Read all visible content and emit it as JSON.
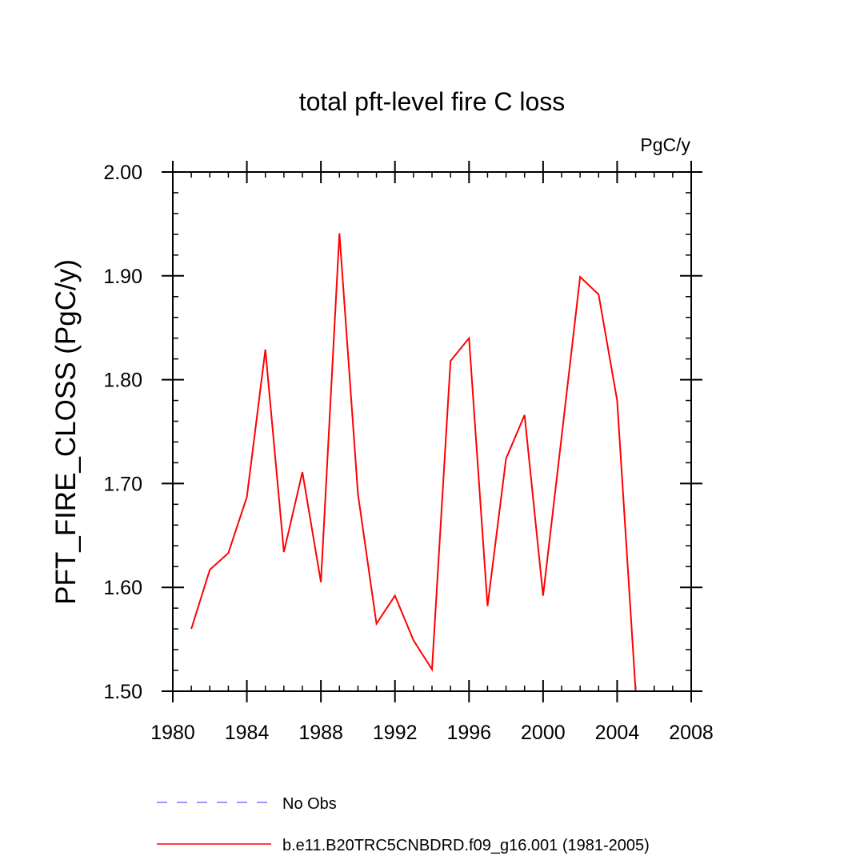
{
  "chart_data": {
    "type": "line",
    "title": "total pft-level fire C loss",
    "units": "PgC/y",
    "xlabel": "",
    "ylabel": "PFT_FIRE_CLOSS  (PgC/y)",
    "xlim": [
      1980,
      2008
    ],
    "ylim": [
      1.5,
      2.0
    ],
    "x_major_ticks": [
      1980,
      1984,
      1988,
      1992,
      1996,
      2000,
      2004,
      2008
    ],
    "y_major_ticks": [
      1.5,
      1.6,
      1.7,
      1.8,
      1.9,
      2.0
    ],
    "y_tick_labels": [
      "1.50",
      "1.60",
      "1.70",
      "1.80",
      "1.90",
      "2.00"
    ],
    "x_minor_step": 1,
    "y_minor_step": 0.02,
    "legend_position": "bottom",
    "series": [
      {
        "name": "No Obs",
        "color": "#5a5aff",
        "style": "dashed",
        "x": [],
        "values": []
      },
      {
        "name": "b.e11.B20TRC5CNBDRD.f09_g16.001 (1981-2005)",
        "color": "#ff0000",
        "style": "solid",
        "x": [
          1981,
          1982,
          1983,
          1984,
          1985,
          1986,
          1987,
          1988,
          1989,
          1990,
          1991,
          1992,
          1993,
          1994,
          1995,
          1996,
          1997,
          1998,
          1999,
          2000,
          2001,
          2002,
          2003,
          2004,
          2005
        ],
        "values": [
          1.56,
          1.617,
          1.633,
          1.687,
          1.829,
          1.634,
          1.711,
          1.605,
          1.941,
          1.69,
          1.565,
          1.592,
          1.549,
          1.521,
          1.818,
          1.84,
          1.582,
          1.724,
          1.766,
          1.592,
          1.745,
          1.899,
          1.882,
          1.78,
          1.5
        ]
      }
    ]
  }
}
